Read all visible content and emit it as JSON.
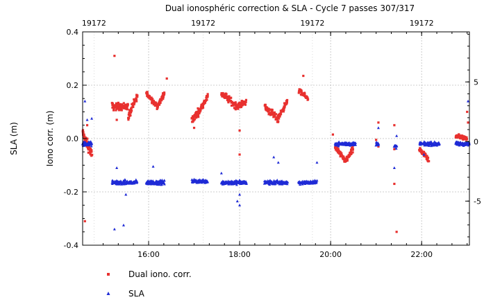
{
  "chart_data": {
    "type": "scatter",
    "title": "Dual ionosphéric correction & SLA - Cycle 7 passes 307/317",
    "ylabel": "Iono corr. (m)",
    "y2label": "SLA (m)",
    "ylim": [
      -0.4,
      0.4
    ],
    "y2lim": [
      -8.7,
      9.2
    ],
    "xlim": [
      14.55,
      23.05
    ],
    "grid": true,
    "legend_position": "bottom-left",
    "x_ticks": [
      {
        "value": 16,
        "label": "16:00"
      },
      {
        "value": 18,
        "label": "18:00"
      },
      {
        "value": 20,
        "label": "20:00"
      },
      {
        "value": 22,
        "label": "22:00"
      }
    ],
    "y_ticks": [
      {
        "value": 0.4,
        "label": "0.4"
      },
      {
        "value": 0.2,
        "label": "0.2"
      },
      {
        "value": 0.0,
        "label": "0.0"
      },
      {
        "value": -0.2,
        "label": "-0.2"
      },
      {
        "value": -0.4,
        "label": "-0.4"
      }
    ],
    "y2_ticks": [
      {
        "value": 5,
        "label": "5"
      },
      {
        "value": 0,
        "label": "0"
      },
      {
        "value": -5,
        "label": "-5"
      }
    ],
    "top_ticks": [
      {
        "value": 14.8,
        "label": "19172"
      },
      {
        "value": 17.2,
        "label": "19172"
      },
      {
        "value": 19.6,
        "label": "19172"
      },
      {
        "value": 22.0,
        "label": "19172"
      }
    ],
    "series": [
      {
        "name": "Dual iono. corr.",
        "color": "#e8312f",
        "marker": "square",
        "axis": "left",
        "segments": [
          {
            "x": [
              14.55,
              14.75
            ],
            "y": [
              0.02,
              -0.06
            ],
            "n": 60,
            "spread": 0.025
          },
          {
            "x": [
              15.2,
              15.55
            ],
            "y": [
              0.12,
              0.12
            ],
            "n": 70,
            "spread": 0.02
          },
          {
            "x": [
              15.55,
              15.75
            ],
            "y": [
              0.08,
              0.16
            ],
            "n": 40,
            "spread": 0.02
          },
          {
            "x": [
              15.95,
              16.2
            ],
            "y": [
              0.17,
              0.12
            ],
            "n": 50,
            "spread": 0.015
          },
          {
            "x": [
              16.2,
              16.35
            ],
            "y": [
              0.12,
              0.17
            ],
            "n": 30,
            "spread": 0.015
          },
          {
            "x": [
              16.95,
              17.1
            ],
            "y": [
              0.07,
              0.1
            ],
            "n": 40,
            "spread": 0.02
          },
          {
            "x": [
              17.1,
              17.3
            ],
            "y": [
              0.1,
              0.16
            ],
            "n": 40,
            "spread": 0.015
          },
          {
            "x": [
              17.6,
              17.95
            ],
            "y": [
              0.17,
              0.12
            ],
            "n": 60,
            "spread": 0.02
          },
          {
            "x": [
              17.95,
              18.15
            ],
            "y": [
              0.12,
              0.14
            ],
            "n": 30,
            "spread": 0.015
          },
          {
            "x": [
              18.55,
              18.85
            ],
            "y": [
              0.12,
              0.07
            ],
            "n": 60,
            "spread": 0.02
          },
          {
            "x": [
              18.85,
              19.05
            ],
            "y": [
              0.08,
              0.14
            ],
            "n": 40,
            "spread": 0.015
          },
          {
            "x": [
              19.3,
              19.5
            ],
            "y": [
              0.18,
              0.15
            ],
            "n": 40,
            "spread": 0.012
          },
          {
            "x": [
              20.1,
              20.3
            ],
            "y": [
              -0.03,
              -0.08
            ],
            "n": 50,
            "spread": 0.015
          },
          {
            "x": [
              20.3,
              20.5
            ],
            "y": [
              -0.09,
              -0.04
            ],
            "n": 40,
            "spread": 0.015
          },
          {
            "x": [
              21.95,
              22.15
            ],
            "y": [
              -0.04,
              -0.08
            ],
            "n": 60,
            "spread": 0.015
          },
          {
            "x": [
              22.75,
              23.0
            ],
            "y": [
              0.01,
              0.0
            ],
            "n": 60,
            "spread": 0.012
          }
        ],
        "outliers": [
          {
            "x": 14.6,
            "y": -0.31
          },
          {
            "x": 14.65,
            "y": 0.05
          },
          {
            "x": 15.25,
            "y": 0.31
          },
          {
            "x": 15.3,
            "y": 0.07
          },
          {
            "x": 16.4,
            "y": 0.225
          },
          {
            "x": 17.0,
            "y": 0.04
          },
          {
            "x": 18.0,
            "y": -0.06
          },
          {
            "x": 18.0,
            "y": 0.03
          },
          {
            "x": 19.4,
            "y": 0.235
          },
          {
            "x": 20.05,
            "y": 0.015
          },
          {
            "x": 21.05,
            "y": 0.06
          },
          {
            "x": 21.0,
            "y": -0.005
          },
          {
            "x": 21.05,
            "y": -0.03
          },
          {
            "x": 21.4,
            "y": 0.05
          },
          {
            "x": 21.4,
            "y": -0.17
          },
          {
            "x": 21.45,
            "y": -0.35
          },
          {
            "x": 21.4,
            "y": -0.04
          },
          {
            "x": 23.0,
            "y": 0.1
          },
          {
            "x": 23.02,
            "y": 0.06
          }
        ]
      },
      {
        "name": "SLA",
        "color": "#1f2bd6",
        "marker": "triangle",
        "axis": "left",
        "segments": [
          {
            "x": [
              14.55,
              14.75
            ],
            "y": [
              -0.02,
              -0.02
            ],
            "n": 50,
            "spread": 0.012
          },
          {
            "x": [
              15.2,
              15.75
            ],
            "y": [
              -0.165,
              -0.165
            ],
            "n": 100,
            "spread": 0.012
          },
          {
            "x": [
              15.95,
              16.35
            ],
            "y": [
              -0.165,
              -0.165
            ],
            "n": 80,
            "spread": 0.012
          },
          {
            "x": [
              16.95,
              17.3
            ],
            "y": [
              -0.16,
              -0.16
            ],
            "n": 70,
            "spread": 0.01
          },
          {
            "x": [
              17.6,
              18.15
            ],
            "y": [
              -0.165,
              -0.165
            ],
            "n": 100,
            "spread": 0.012
          },
          {
            "x": [
              18.55,
              19.05
            ],
            "y": [
              -0.165,
              -0.165
            ],
            "n": 90,
            "spread": 0.012
          },
          {
            "x": [
              19.3,
              19.7
            ],
            "y": [
              -0.165,
              -0.165
            ],
            "n": 60,
            "spread": 0.01
          },
          {
            "x": [
              20.1,
              20.55
            ],
            "y": [
              -0.02,
              -0.02
            ],
            "n": 90,
            "spread": 0.01
          },
          {
            "x": [
              21.0,
              21.05
            ],
            "y": [
              -0.02,
              -0.02
            ],
            "n": 15,
            "spread": 0.01
          },
          {
            "x": [
              21.4,
              21.45
            ],
            "y": [
              -0.03,
              -0.03
            ],
            "n": 15,
            "spread": 0.01
          },
          {
            "x": [
              21.95,
              22.4
            ],
            "y": [
              -0.02,
              -0.02
            ],
            "n": 90,
            "spread": 0.01
          },
          {
            "x": [
              22.75,
              23.05
            ],
            "y": [
              -0.02,
              -0.02
            ],
            "n": 70,
            "spread": 0.01
          }
        ],
        "outliers": [
          {
            "x": 14.65,
            "y": 0.07
          },
          {
            "x": 14.6,
            "y": 0.14
          },
          {
            "x": 14.75,
            "y": 0.075
          },
          {
            "x": 15.25,
            "y": -0.34
          },
          {
            "x": 15.45,
            "y": -0.325
          },
          {
            "x": 15.3,
            "y": -0.11
          },
          {
            "x": 15.5,
            "y": -0.21
          },
          {
            "x": 16.1,
            "y": -0.105
          },
          {
            "x": 17.6,
            "y": -0.13
          },
          {
            "x": 17.95,
            "y": -0.235
          },
          {
            "x": 18.0,
            "y": -0.21
          },
          {
            "x": 18.0,
            "y": -0.25
          },
          {
            "x": 18.75,
            "y": -0.07
          },
          {
            "x": 18.85,
            "y": -0.09
          },
          {
            "x": 19.7,
            "y": -0.09
          },
          {
            "x": 21.05,
            "y": 0.04
          },
          {
            "x": 21.4,
            "y": -0.11
          },
          {
            "x": 21.45,
            "y": 0.01
          },
          {
            "x": 22.05,
            "y": -0.06
          },
          {
            "x": 23.02,
            "y": 0.14
          }
        ]
      }
    ]
  }
}
